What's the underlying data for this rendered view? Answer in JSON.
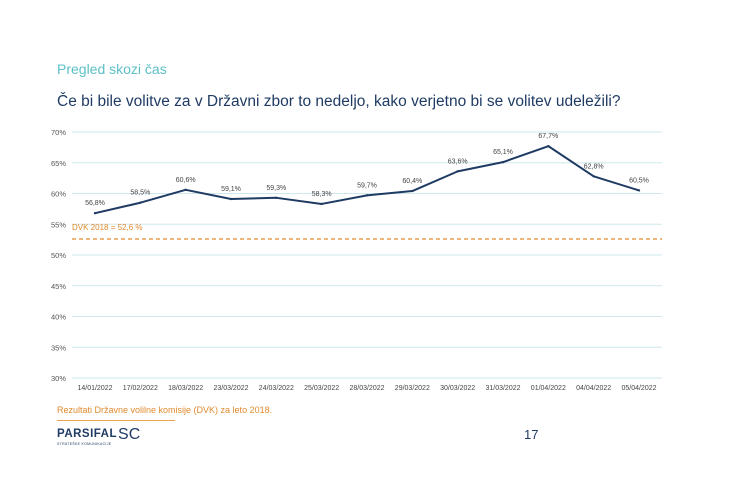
{
  "header": {
    "section_title": "Pregled skozi čas",
    "question": "Če bi bile volitve za v Državni zbor to nedeljo, kako verjetno bi se volitev udeležili?"
  },
  "chart_data": {
    "type": "line",
    "categories": [
      "14/01/2022",
      "17/02/2022",
      "18/03/2022",
      "23/03/2022",
      "24/03/2022",
      "25/03/2022",
      "28/03/2022",
      "29/03/2022",
      "30/03/2022",
      "31/03/2022",
      "01/04/2022",
      "04/04/2022",
      "05/04/2022"
    ],
    "series": [
      {
        "values": [
          56.8,
          58.5,
          60.6,
          59.1,
          59.3,
          58.3,
          59.7,
          60.4,
          63.6,
          65.1,
          67.7,
          62.8,
          60.5
        ],
        "labels": [
          "56,8%",
          "58,5%",
          "60,6%",
          "59,1%",
          "59,3%",
          "58,3%",
          "59,7%",
          "60,4%",
          "63,6%",
          "65,1%",
          "67,7%",
          "62,8%",
          "60,5%"
        ],
        "color": "#1f3b63"
      }
    ],
    "reference_line": {
      "value": 52.6,
      "label": "DVK 2018 = 52,6 %",
      "color": "#e08a2e",
      "style": "dashed"
    },
    "ylim": [
      30,
      70
    ],
    "yticks": [
      30,
      35,
      40,
      45,
      50,
      55,
      60,
      65,
      70
    ],
    "ytick_labels": [
      "30%",
      "35%",
      "40%",
      "45%",
      "50%",
      "55%",
      "60%",
      "65%",
      "70%"
    ],
    "grid": true,
    "grid_color": "#cfe8ec"
  },
  "footer": {
    "footnote": "Rezultati Državne volilne komisije (DVK) za leto 2018.",
    "logo_main": "PARSIFAL",
    "logo_sc": "SC",
    "logo_sub": "STRATEŠKE KOMUNIKACIJE",
    "page_number": "17"
  }
}
